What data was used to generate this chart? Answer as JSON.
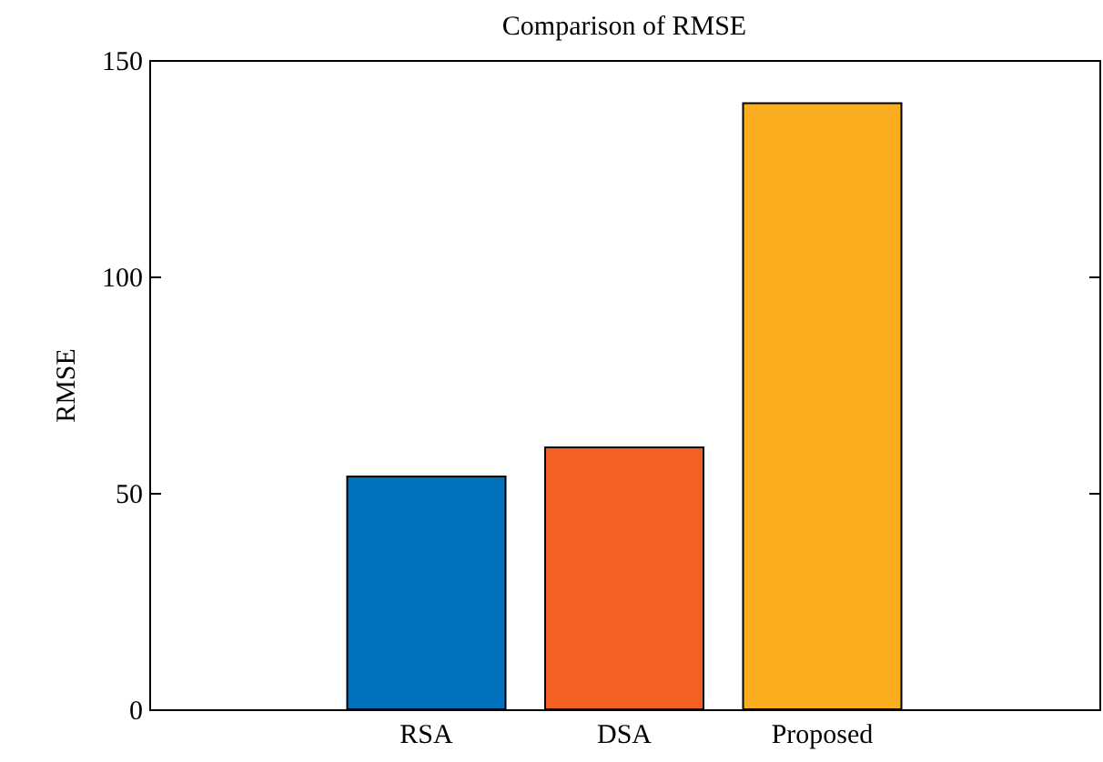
{
  "chart_data": {
    "type": "bar",
    "title": "Comparison of RMSE",
    "ylabel": "RMSE",
    "categories": [
      "RSA",
      "DSA",
      "Proposed"
    ],
    "values": [
      53.8,
      60.5,
      140
    ],
    "colors": [
      "#0072bd",
      "#f26122",
      "#f9ad1f"
    ],
    "ylim": [
      0,
      150
    ],
    "yticks": [
      0,
      50,
      100,
      150
    ],
    "grid": false
  }
}
